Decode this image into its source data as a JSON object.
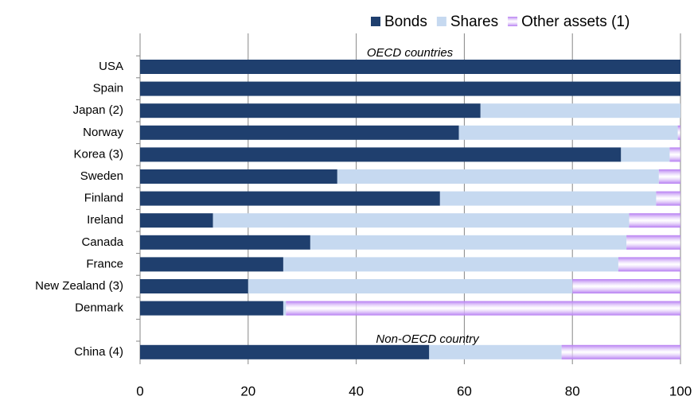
{
  "chart_data": {
    "type": "stacked-barh",
    "categories": [
      "USA",
      "Spain",
      "Japan (2)",
      "Norway",
      "Korea (3)",
      "Sweden",
      "Finland",
      "Ireland",
      "Canada",
      "France",
      "New Zealand (3)",
      "Denmark",
      null,
      "China (4)"
    ],
    "series": [
      {
        "name": "Bonds",
        "color": "#1f3f6e",
        "values": [
          100,
          100,
          63,
          59,
          89,
          36.5,
          55.5,
          13.5,
          31.5,
          26.5,
          20,
          26.5,
          null,
          53.5
        ]
      },
      {
        "name": "Shares",
        "color": "#c6d9f0",
        "values": [
          0,
          0,
          37,
          40.5,
          9,
          59.5,
          40,
          77,
          58.5,
          62,
          60,
          0.5,
          null,
          24.5
        ]
      },
      {
        "name": "Other assets (1)",
        "color": "#b57cf2",
        "values": [
          0,
          0,
          0,
          0.5,
          2,
          4,
          4.5,
          9.5,
          10,
          11.5,
          20,
          73,
          null,
          22
        ]
      }
    ],
    "annotations": [
      "OECD countries",
      "Non-OECD country"
    ],
    "xlim": [
      0,
      100
    ],
    "xticks": [
      0,
      20,
      40,
      60,
      80,
      100
    ],
    "grid": true,
    "legend": "top-right"
  }
}
